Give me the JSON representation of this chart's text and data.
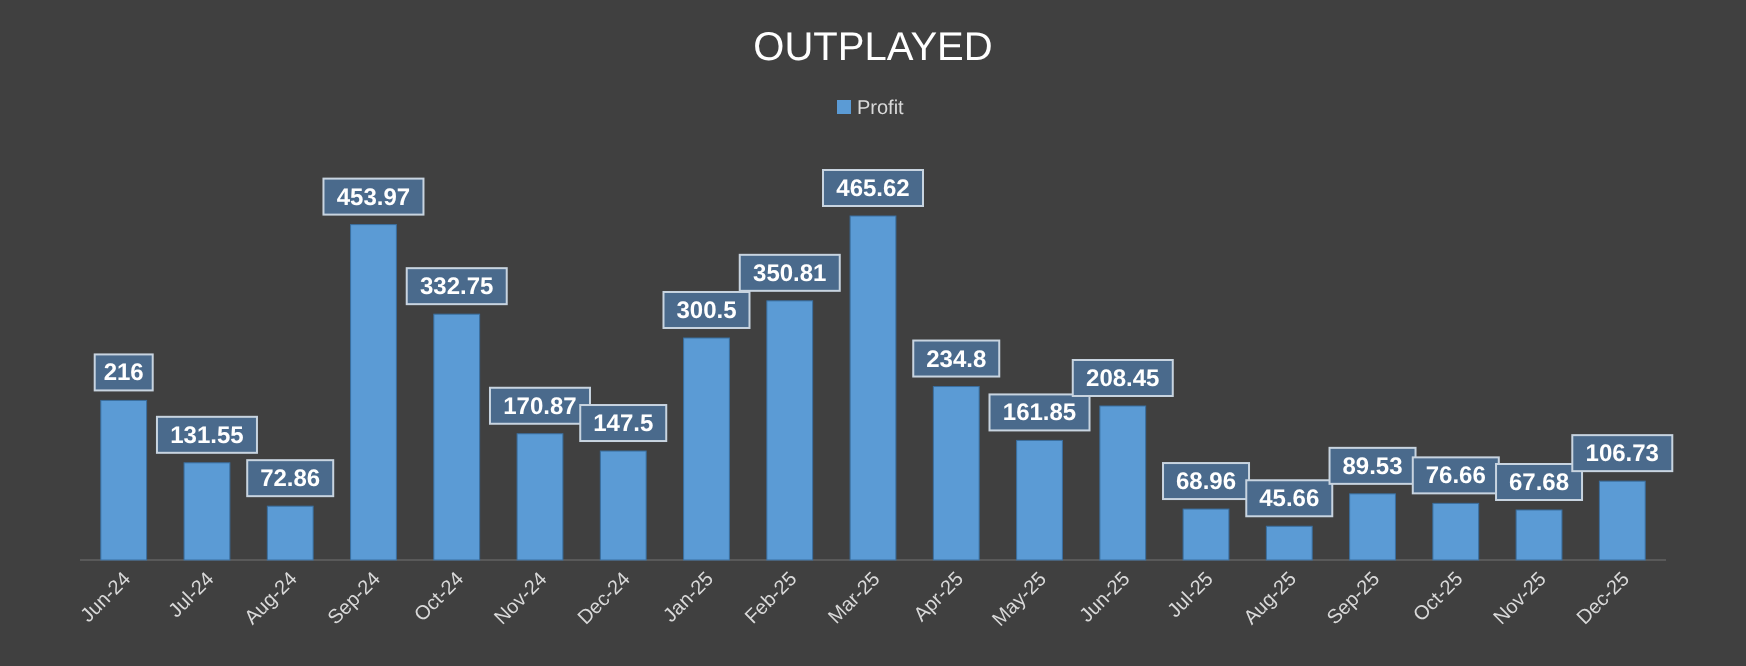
{
  "chart_data": {
    "type": "bar",
    "title": "OUTPLAYED",
    "categories": [
      "Jun-24",
      "Jul-24",
      "Aug-24",
      "Sep-24",
      "Oct-24",
      "Nov-24",
      "Dec-24",
      "Jan-25",
      "Feb-25",
      "Mar-25",
      "Apr-25",
      "May-25",
      "Jun-25",
      "Jul-25",
      "Aug-25",
      "Sep-25",
      "Oct-25",
      "Nov-25",
      "Dec-25"
    ],
    "series": [
      {
        "name": "Profit",
        "color": "#5b9bd5",
        "values": [
          216,
          131.55,
          72.86,
          453.97,
          332.75,
          170.87,
          147.5,
          300.5,
          350.81,
          465.62,
          234.8,
          161.85,
          208.45,
          68.96,
          45.66,
          89.53,
          76.66,
          67.68,
          106.73
        ]
      }
    ],
    "data_labels": true,
    "legend": "top"
  }
}
